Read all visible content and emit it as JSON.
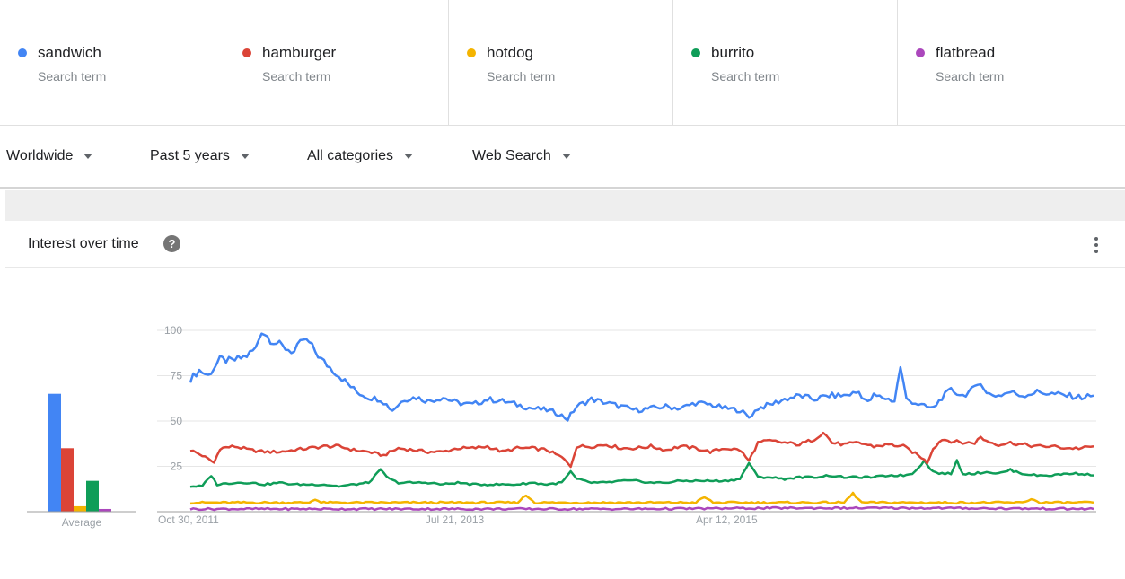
{
  "terms": [
    {
      "name": "sandwich",
      "sub": "Search term",
      "color": "#4285f4"
    },
    {
      "name": "hamburger",
      "sub": "Search term",
      "color": "#db4437"
    },
    {
      "name": "hotdog",
      "sub": "Search term",
      "color": "#f4b400"
    },
    {
      "name": "burrito",
      "sub": "Search term",
      "color": "#0f9d58"
    },
    {
      "name": "flatbread",
      "sub": "Search term",
      "color": "#ab47bc"
    }
  ],
  "filters": [
    {
      "label": "Worldwide"
    },
    {
      "label": "Past 5 years"
    },
    {
      "label": "All categories"
    },
    {
      "label": "Web Search"
    }
  ],
  "section": {
    "title": "Interest over time",
    "help_icon": "help-icon",
    "more_icon": "more-vert-icon"
  },
  "chart_data": [
    {
      "type": "bar",
      "categories": [
        "sandwich",
        "hamburger",
        "hotdog",
        "burrito",
        "flatbread"
      ],
      "values": [
        65,
        35,
        3,
        17,
        1.5
      ],
      "colors": [
        "#4285f4",
        "#db4437",
        "#f4b400",
        "#0f9d58",
        "#ab47bc"
      ],
      "xlabel": "Average",
      "ylim": [
        0,
        100
      ]
    },
    {
      "type": "line",
      "x_ticks": [
        "Oct 30, 2011",
        "Jul 21, 2013",
        "Apr 12, 2015"
      ],
      "y_ticks": [
        25,
        50,
        75,
        100
      ],
      "ylim": [
        0,
        100
      ],
      "x_range": [
        "2011-10-30",
        "2016-10-23"
      ],
      "sample_interval": "weekly",
      "grid": true,
      "series": [
        {
          "name": "sandwich",
          "color": "#4285f4",
          "anchors": [
            [
              0,
              73
            ],
            [
              3,
              78
            ],
            [
              6,
              75
            ],
            [
              10,
              84
            ],
            [
              14,
              83
            ],
            [
              19,
              86
            ],
            [
              22,
              90
            ],
            [
              24,
              100
            ],
            [
              27,
              95
            ],
            [
              31,
              91
            ],
            [
              35,
              88
            ],
            [
              38,
              95
            ],
            [
              40,
              93
            ],
            [
              44,
              84
            ],
            [
              48,
              78
            ],
            [
              52,
              72
            ],
            [
              56,
              66
            ],
            [
              60,
              63
            ],
            [
              64,
              62
            ],
            [
              68,
              56
            ],
            [
              72,
              62
            ],
            [
              76,
              63
            ],
            [
              80,
              61
            ],
            [
              85,
              63
            ],
            [
              90,
              60
            ],
            [
              95,
              59
            ],
            [
              100,
              62
            ],
            [
              105,
              61
            ],
            [
              110,
              59
            ],
            [
              115,
              57
            ],
            [
              120,
              56
            ],
            [
              124,
              54
            ],
            [
              127,
              51
            ],
            [
              130,
              58
            ],
            [
              135,
              62
            ],
            [
              140,
              60
            ],
            [
              145,
              58
            ],
            [
              150,
              56
            ],
            [
              155,
              57
            ],
            [
              160,
              58
            ],
            [
              165,
              57
            ],
            [
              170,
              60
            ],
            [
              175,
              59
            ],
            [
              180,
              57
            ],
            [
              185,
              56
            ],
            [
              188,
              52
            ],
            [
              191,
              57
            ],
            [
              195,
              59
            ],
            [
              200,
              62
            ],
            [
              205,
              64
            ],
            [
              210,
              62
            ],
            [
              215,
              64
            ],
            [
              220,
              64
            ],
            [
              225,
              66
            ],
            [
              228,
              60
            ],
            [
              230,
              64
            ],
            [
              233,
              63
            ],
            [
              235,
              62
            ],
            [
              237,
              61
            ],
            [
              239,
              80
            ],
            [
              241,
              62
            ],
            [
              244,
              60
            ],
            [
              247,
              58
            ],
            [
              250,
              57
            ],
            [
              253,
              63
            ],
            [
              256,
              67
            ],
            [
              260,
              64
            ],
            [
              264,
              68
            ],
            [
              266,
              72
            ],
            [
              268,
              65
            ],
            [
              272,
              64
            ],
            [
              276,
              66
            ],
            [
              280,
              64
            ],
            [
              285,
              66
            ],
            [
              290,
              65
            ],
            [
              295,
              64
            ],
            [
              300,
              63
            ],
            [
              304,
              64
            ]
          ]
        },
        {
          "name": "hamburger",
          "color": "#db4437",
          "anchors": [
            [
              0,
              34
            ],
            [
              4,
              31
            ],
            [
              8,
              27
            ],
            [
              10,
              35
            ],
            [
              15,
              36
            ],
            [
              20,
              34
            ],
            [
              25,
              33
            ],
            [
              30,
              33
            ],
            [
              35,
              34
            ],
            [
              40,
              35
            ],
            [
              45,
              36
            ],
            [
              50,
              36
            ],
            [
              55,
              34
            ],
            [
              60,
              33
            ],
            [
              65,
              31
            ],
            [
              70,
              35
            ],
            [
              75,
              34
            ],
            [
              80,
              33
            ],
            [
              85,
              33
            ],
            [
              90,
              35
            ],
            [
              95,
              35
            ],
            [
              100,
              36
            ],
            [
              105,
              33
            ],
            [
              110,
              35
            ],
            [
              115,
              35
            ],
            [
              120,
              34
            ],
            [
              125,
              30
            ],
            [
              128,
              25
            ],
            [
              130,
              36
            ],
            [
              135,
              36
            ],
            [
              140,
              37
            ],
            [
              145,
              35
            ],
            [
              150,
              35
            ],
            [
              155,
              36
            ],
            [
              160,
              34
            ],
            [
              165,
              36
            ],
            [
              170,
              35
            ],
            [
              175,
              33
            ],
            [
              180,
              35
            ],
            [
              185,
              34
            ],
            [
              188,
              28
            ],
            [
              191,
              38
            ],
            [
              195,
              39
            ],
            [
              200,
              38
            ],
            [
              205,
              37
            ],
            [
              210,
              40
            ],
            [
              213,
              44
            ],
            [
              216,
              38
            ],
            [
              220,
              37
            ],
            [
              225,
              38
            ],
            [
              230,
              36
            ],
            [
              235,
              37
            ],
            [
              240,
              36
            ],
            [
              243,
              33
            ],
            [
              246,
              30
            ],
            [
              248,
              27
            ],
            [
              250,
              35
            ],
            [
              253,
              40
            ],
            [
              256,
              39
            ],
            [
              260,
              38
            ],
            [
              264,
              38
            ],
            [
              266,
              41
            ],
            [
              268,
              39
            ],
            [
              272,
              37
            ],
            [
              276,
              38
            ],
            [
              280,
              37
            ],
            [
              285,
              36
            ],
            [
              290,
              36
            ],
            [
              295,
              35
            ],
            [
              300,
              35
            ],
            [
              304,
              36
            ]
          ]
        },
        {
          "name": "hotdog",
          "color": "#f4b400",
          "anchors": [
            [
              0,
              5
            ],
            [
              20,
              5
            ],
            [
              40,
              5
            ],
            [
              42,
              7
            ],
            [
              44,
              5
            ],
            [
              80,
              5
            ],
            [
              110,
              5
            ],
            [
              113,
              9
            ],
            [
              116,
              5
            ],
            [
              150,
              5
            ],
            [
              170,
              5
            ],
            [
              173,
              8
            ],
            [
              176,
              5
            ],
            [
              200,
              5
            ],
            [
              220,
              5
            ],
            [
              223,
              10
            ],
            [
              226,
              5
            ],
            [
              260,
              5
            ],
            [
              280,
              5
            ],
            [
              283,
              7
            ],
            [
              286,
              5
            ],
            [
              304,
              5
            ]
          ]
        },
        {
          "name": "burrito",
          "color": "#0f9d58",
          "anchors": [
            [
              0,
              14
            ],
            [
              4,
              14
            ],
            [
              7,
              20
            ],
            [
              9,
              15
            ],
            [
              15,
              16
            ],
            [
              20,
              16
            ],
            [
              25,
              15
            ],
            [
              30,
              16
            ],
            [
              35,
              15
            ],
            [
              40,
              15
            ],
            [
              45,
              15
            ],
            [
              50,
              14
            ],
            [
              55,
              15
            ],
            [
              60,
              16
            ],
            [
              64,
              23
            ],
            [
              67,
              18
            ],
            [
              70,
              16
            ],
            [
              75,
              16
            ],
            [
              80,
              16
            ],
            [
              85,
              15
            ],
            [
              90,
              16
            ],
            [
              95,
              15
            ],
            [
              100,
              15
            ],
            [
              105,
              15
            ],
            [
              110,
              15
            ],
            [
              115,
              16
            ],
            [
              120,
              15
            ],
            [
              125,
              16
            ],
            [
              128,
              22
            ],
            [
              130,
              18
            ],
            [
              135,
              16
            ],
            [
              140,
              16
            ],
            [
              145,
              17
            ],
            [
              150,
              17
            ],
            [
              155,
              16
            ],
            [
              160,
              16
            ],
            [
              165,
              17
            ],
            [
              170,
              17
            ],
            [
              175,
              17
            ],
            [
              180,
              17
            ],
            [
              185,
              18
            ],
            [
              188,
              27
            ],
            [
              191,
              19
            ],
            [
              195,
              19
            ],
            [
              200,
              18
            ],
            [
              205,
              19
            ],
            [
              210,
              19
            ],
            [
              215,
              20
            ],
            [
              220,
              19
            ],
            [
              225,
              19
            ],
            [
              230,
              19
            ],
            [
              235,
              20
            ],
            [
              240,
              20
            ],
            [
              243,
              21
            ],
            [
              247,
              28
            ],
            [
              250,
              22
            ],
            [
              253,
              21
            ],
            [
              256,
              21
            ],
            [
              258,
              28
            ],
            [
              260,
              21
            ],
            [
              264,
              21
            ],
            [
              268,
              22
            ],
            [
              272,
              21
            ],
            [
              276,
              23
            ],
            [
              280,
              21
            ],
            [
              285,
              20
            ],
            [
              290,
              20
            ],
            [
              295,
              21
            ],
            [
              300,
              21
            ],
            [
              304,
              20
            ]
          ]
        },
        {
          "name": "flatbread",
          "color": "#ab47bc",
          "anchors": [
            [
              0,
              1.5
            ],
            [
              50,
              1.5
            ],
            [
              100,
              1.5
            ],
            [
              150,
              1.5
            ],
            [
              200,
              2
            ],
            [
              250,
              2
            ],
            [
              304,
              1.5
            ]
          ]
        }
      ]
    }
  ]
}
